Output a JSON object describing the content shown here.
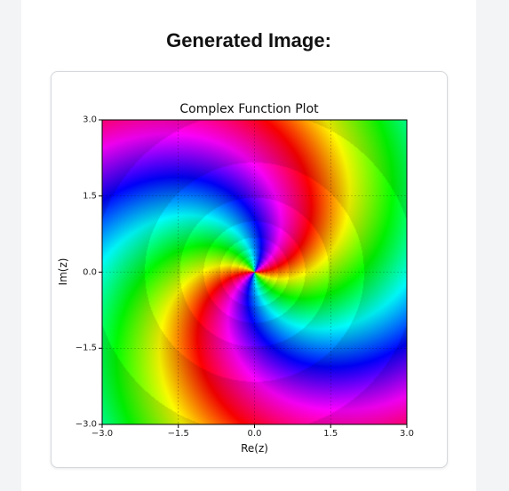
{
  "page": {
    "heading": "Generated Image:"
  },
  "chart_data": {
    "type": "heatmap",
    "title": "Complex Function Plot",
    "xlabel": "Re(z)",
    "ylabel": "Im(z)",
    "xlim": [
      -3.0,
      3.0
    ],
    "ylim": [
      -3.0,
      3.0
    ],
    "xticks": [
      "−3.0",
      "−1.5",
      "0.0",
      "1.5",
      "3.0"
    ],
    "yticks": [
      "3.0",
      "1.5",
      "0.0",
      "−1.5",
      "−3.0"
    ],
    "xtick_values": [
      -3.0,
      -1.5,
      0.0,
      1.5,
      3.0
    ],
    "ytick_values": [
      3.0,
      1.5,
      0.0,
      -1.5,
      -3.0
    ],
    "grid": true,
    "colormap": "hsv",
    "coloring": "domain coloring: hue encodes argument of f(z), with concentric bands of brightness"
  }
}
